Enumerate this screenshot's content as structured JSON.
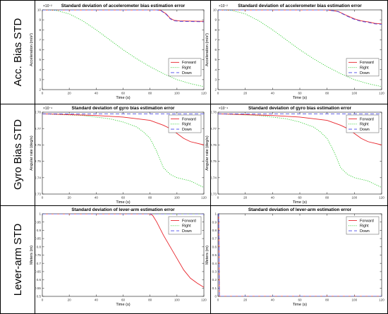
{
  "row_labels": [
    "Acc. Bias STD",
    "Gyro Bias STD",
    "Lever-arm STD"
  ],
  "legend": [
    {
      "name": "Forward",
      "color": "#e8242b",
      "dash": "solid"
    },
    {
      "name": "Right",
      "color": "#32cd32",
      "dash": "dotted"
    },
    {
      "name": "Down",
      "color": "#4a4ae8",
      "dash": "dashed"
    }
  ],
  "chart_data": [
    {
      "type": "line",
      "title": "Standard deviation of accelerometer bias estimation error",
      "xlabel": "Time (s)",
      "ylabel": "Acceleration (m/s²)",
      "exponent": "×10⁻²",
      "xlim": [
        0,
        120
      ],
      "ylim": [
        2,
        10
      ],
      "xticks": [
        0,
        20,
        40,
        60,
        80,
        100,
        120
      ],
      "yticks": [
        2,
        3,
        4,
        5,
        6,
        7,
        8,
        9,
        10
      ],
      "grid": false,
      "legend_position": "middle-right",
      "series": [
        {
          "name": "Forward",
          "x": [
            0,
            85,
            88,
            92,
            95,
            98,
            102,
            108,
            115,
            120
          ],
          "y": [
            10,
            10,
            9.95,
            9.6,
            9.15,
            8.95,
            8.9,
            8.88,
            8.86,
            8.85
          ]
        },
        {
          "name": "Right",
          "x": [
            0,
            10,
            20,
            30,
            40,
            50,
            60,
            70,
            80,
            90,
            100,
            110,
            120
          ],
          "y": [
            10,
            9.95,
            9.6,
            8.9,
            8.0,
            7.0,
            6.0,
            5.1,
            4.3,
            3.6,
            3.0,
            2.6,
            2.3
          ]
        },
        {
          "name": "Down",
          "x": [
            0,
            85,
            88,
            92,
            95,
            98,
            102,
            108,
            115,
            120
          ],
          "y": [
            10,
            10,
            9.93,
            9.55,
            9.1,
            8.9,
            8.85,
            8.83,
            8.82,
            8.8
          ]
        }
      ]
    },
    {
      "type": "line",
      "title": "Standard deviation of accelerometer bias estimation error",
      "xlabel": "Time (s)",
      "ylabel": "Acceleration (m/s²)",
      "exponent": "×10⁻²",
      "xlim": [
        0,
        120
      ],
      "ylim": [
        2,
        10
      ],
      "xticks": [
        0,
        20,
        40,
        60,
        80,
        100,
        120
      ],
      "yticks": [
        2,
        3,
        4,
        5,
        6,
        7,
        8,
        9,
        10
      ],
      "grid": false,
      "legend_position": "middle-right",
      "series": [
        {
          "name": "Forward",
          "x": [
            0,
            80,
            88,
            95,
            100,
            105,
            110,
            115,
            120
          ],
          "y": [
            10,
            10,
            9.85,
            9.4,
            9.1,
            8.9,
            8.8,
            8.65,
            8.6
          ]
        },
        {
          "name": "Right",
          "x": [
            0,
            10,
            20,
            30,
            40,
            50,
            60,
            70,
            80,
            90,
            100,
            110,
            120
          ],
          "y": [
            10,
            9.95,
            9.6,
            8.9,
            8.0,
            7.0,
            6.0,
            5.1,
            4.3,
            3.6,
            3.0,
            2.6,
            2.3
          ]
        },
        {
          "name": "Down",
          "x": [
            0,
            80,
            88,
            95,
            100,
            105,
            110,
            115,
            120
          ],
          "y": [
            10,
            10,
            9.83,
            9.35,
            9.05,
            8.85,
            8.75,
            8.6,
            8.55
          ]
        }
      ]
    },
    {
      "type": "line",
      "title": "Standard deviation of gyro bias estimation error",
      "xlabel": "Time (s)",
      "ylabel": "Angular rate (deg/s)",
      "exponent": "×10⁻⁴",
      "xlim": [
        0,
        120
      ],
      "ylim": [
        2.73,
        2.78
      ],
      "xticks": [
        0,
        20,
        40,
        60,
        80,
        100,
        120
      ],
      "yticks": [
        2.73,
        2.74,
        2.75,
        2.76,
        2.77,
        2.78
      ],
      "grid": false,
      "legend_position": "top-right",
      "series": [
        {
          "name": "Forward",
          "x": [
            0,
            40,
            60,
            80,
            90,
            95,
            100,
            105,
            110,
            115,
            120
          ],
          "y": [
            2.779,
            2.778,
            2.777,
            2.775,
            2.772,
            2.77,
            2.767,
            2.764,
            2.762,
            2.761,
            2.76
          ]
        },
        {
          "name": "Right",
          "x": [
            0,
            30,
            50,
            60,
            70,
            75,
            80,
            85,
            88,
            90,
            95,
            100,
            105,
            110,
            115,
            120
          ],
          "y": [
            2.779,
            2.778,
            2.776,
            2.774,
            2.771,
            2.768,
            2.764,
            2.756,
            2.75,
            2.746,
            2.742,
            2.74,
            2.739,
            2.738,
            2.736,
            2.734
          ]
        },
        {
          "name": "Down",
          "x": [
            0,
            120
          ],
          "y": [
            2.779,
            2.779
          ]
        }
      ]
    },
    {
      "type": "line",
      "title": "Standard deviation of gyro bias estimation error",
      "xlabel": "Time (s)",
      "ylabel": "Angular rate (deg/s)",
      "exponent": "×10⁻⁴",
      "xlim": [
        0,
        120
      ],
      "ylim": [
        2.73,
        2.78
      ],
      "xticks": [
        0,
        20,
        40,
        60,
        80,
        100,
        120
      ],
      "yticks": [
        2.73,
        2.74,
        2.75,
        2.76,
        2.77,
        2.78
      ],
      "grid": false,
      "legend_position": "top-right",
      "series": [
        {
          "name": "Forward",
          "x": [
            0,
            40,
            60,
            80,
            90,
            95,
            100,
            105,
            110,
            115,
            120
          ],
          "y": [
            2.779,
            2.778,
            2.777,
            2.775,
            2.772,
            2.77,
            2.767,
            2.764,
            2.762,
            2.761,
            2.76
          ]
        },
        {
          "name": "Right",
          "x": [
            0,
            30,
            50,
            60,
            70,
            75,
            80,
            85,
            88,
            90,
            95,
            100,
            105,
            110,
            115,
            120
          ],
          "y": [
            2.779,
            2.778,
            2.776,
            2.774,
            2.771,
            2.768,
            2.764,
            2.756,
            2.75,
            2.746,
            2.742,
            2.74,
            2.739,
            2.738,
            2.736,
            2.734
          ]
        },
        {
          "name": "Down",
          "x": [
            0,
            120
          ],
          "y": [
            2.779,
            2.779
          ]
        }
      ]
    },
    {
      "type": "line",
      "title": "Standard deviation of lever-arm estimation error",
      "xlabel": "Time (s)",
      "ylabel": "Meters (m)",
      "exponent": "",
      "xlim": [
        0,
        120
      ],
      "ylim": [
        0.5,
        1
      ],
      "xticks": [
        0,
        20,
        40,
        60,
        80,
        100,
        120
      ],
      "yticks": [
        0.5,
        0.55,
        0.6,
        0.65,
        0.7,
        0.75,
        0.8,
        0.85,
        0.9,
        0.95,
        1
      ],
      "grid": false,
      "legend_position": "top-right",
      "series": [
        {
          "name": "Forward",
          "x": [
            0,
            80,
            82,
            85,
            90,
            95,
            100,
            105,
            110,
            115,
            120
          ],
          "y": [
            1,
            1,
            0.99,
            0.95,
            0.87,
            0.8,
            0.73,
            0.66,
            0.61,
            0.58,
            0.555
          ]
        },
        {
          "name": "Right",
          "x": [
            0,
            120
          ],
          "y": [
            1,
            1
          ]
        },
        {
          "name": "Down",
          "x": [
            0,
            120
          ],
          "y": [
            1,
            1
          ]
        }
      ]
    },
    {
      "type": "line",
      "title": "Standard deviation of lever-arm estimation error",
      "xlabel": "Time (s)",
      "ylabel": "Meters (m)",
      "exponent": "",
      "xlim": [
        0,
        120
      ],
      "ylim": [
        0,
        1
      ],
      "xticks": [
        0,
        20,
        40,
        60,
        80,
        100,
        120
      ],
      "yticks": [
        0,
        0.1,
        0.2,
        0.3,
        0.4,
        0.5,
        0.6,
        0.7,
        0.8,
        0.9,
        1
      ],
      "grid": false,
      "legend_position": "top-right",
      "series": [
        {
          "name": "Forward",
          "x": [
            0,
            0.5,
            1,
            120
          ],
          "y": [
            1,
            1,
            0,
            0
          ]
        },
        {
          "name": "Right",
          "x": [
            0,
            0.5,
            1,
            120
          ],
          "y": [
            1,
            1,
            0,
            0
          ]
        },
        {
          "name": "Down",
          "x": [
            0,
            0.5,
            1,
            120
          ],
          "y": [
            1,
            1,
            0,
            0
          ]
        }
      ]
    }
  ]
}
